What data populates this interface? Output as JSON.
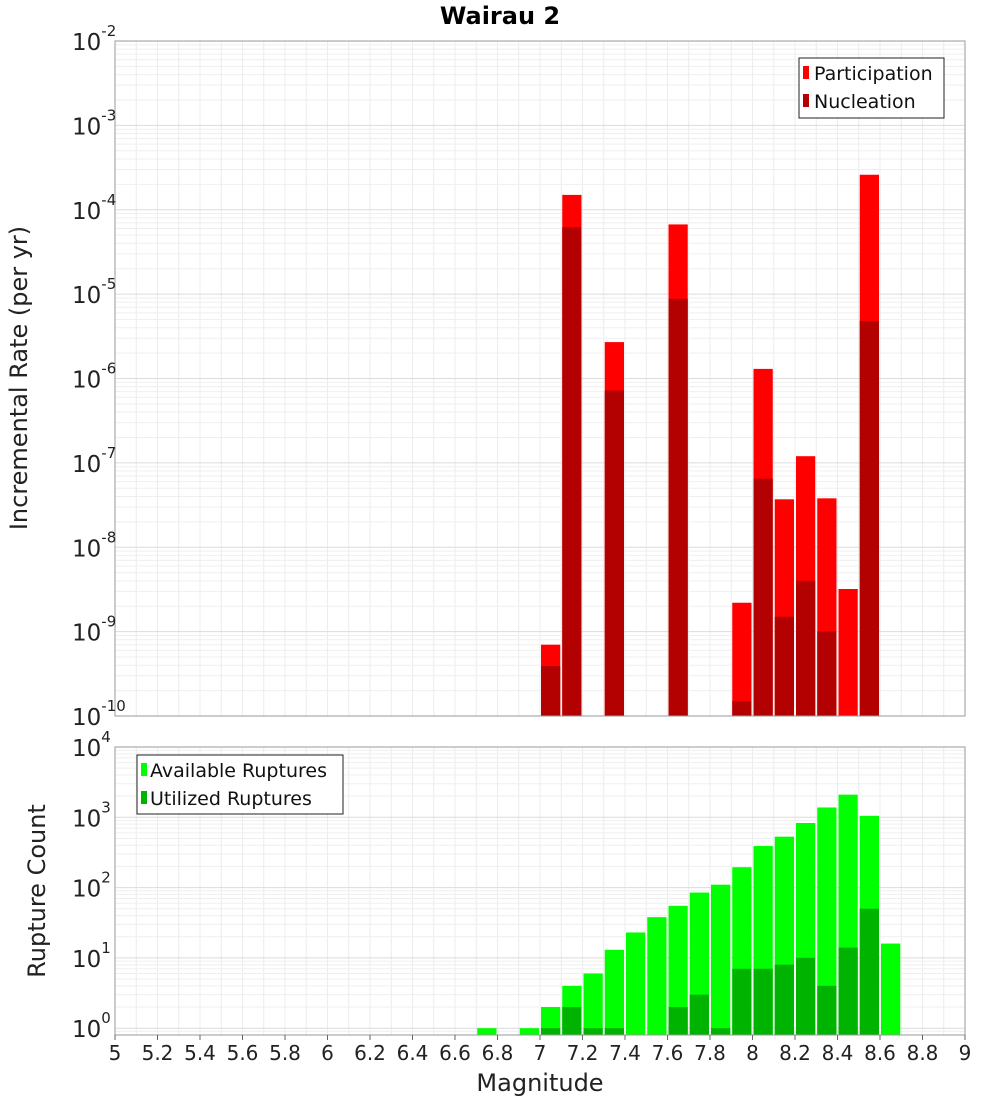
{
  "title": "Wairau 2",
  "chart_data": [
    {
      "type": "bar",
      "scale": "log",
      "ylabel": "Incremental Rate (per yr)",
      "xlabel": "",
      "xlim": [
        5,
        9
      ],
      "ylim": [
        1e-10,
        0.01
      ],
      "ytick_exponents": [
        -10,
        -9,
        -8,
        -7,
        -6,
        -5,
        -4,
        -3,
        -2
      ],
      "grid": true,
      "legend_position": "top-right",
      "series": [
        {
          "name": "Participation",
          "color": "#ff0000",
          "x": [
            7.05,
            7.15,
            7.35,
            7.65,
            7.95,
            8.05,
            8.15,
            8.25,
            8.35,
            8.45,
            8.55
          ],
          "values": [
            7e-10,
            0.00015,
            2.7e-06,
            6.7e-05,
            2.2e-09,
            1.3e-06,
            3.7e-08,
            1.2e-07,
            3.8e-08,
            3.2e-09,
            0.00026
          ]
        },
        {
          "name": "Nucleation",
          "color": "#b30000",
          "x": [
            7.05,
            7.15,
            7.35,
            7.65,
            7.95,
            8.05,
            8.15,
            8.25,
            8.35,
            8.55
          ],
          "values": [
            3.9e-10,
            6.2e-05,
            7.2e-07,
            8.8e-06,
            1.5e-10,
            6.5e-08,
            1.5e-09,
            4e-09,
            1e-09,
            4.8e-06
          ]
        }
      ]
    },
    {
      "type": "bar",
      "scale": "log",
      "ylabel": "Rupture Count",
      "xlabel": "Magnitude",
      "xlim": [
        5,
        9
      ],
      "ylim": [
        0.8,
        10000
      ],
      "ytick_exponents": [
        0,
        1,
        2,
        3,
        4
      ],
      "xticks": [
        "5",
        "5.2",
        "5.4",
        "5.6",
        "5.8",
        "6",
        "6.2",
        "6.4",
        "6.6",
        "6.8",
        "7",
        "7.2",
        "7.4",
        "7.6",
        "7.8",
        "8",
        "8.2",
        "8.4",
        "8.6",
        "8.8",
        "9"
      ],
      "grid": true,
      "legend_position": "top-left",
      "series": [
        {
          "name": "Available Ruptures",
          "color": "#00ff00",
          "x": [
            6.75,
            6.95,
            7.05,
            7.15,
            7.25,
            7.35,
            7.45,
            7.55,
            7.65,
            7.75,
            7.85,
            7.95,
            8.05,
            8.15,
            8.25,
            8.35,
            8.45,
            8.55,
            8.65
          ],
          "values": [
            1,
            1,
            2,
            4,
            6,
            13,
            23,
            38,
            55,
            85,
            110,
            195,
            390,
            530,
            830,
            1380,
            2100,
            1050,
            16
          ]
        },
        {
          "name": "Utilized Ruptures",
          "color": "#00b300",
          "x": [
            7.05,
            7.15,
            7.25,
            7.35,
            7.65,
            7.75,
            7.85,
            7.95,
            8.05,
            8.15,
            8.25,
            8.35,
            8.45,
            8.55
          ],
          "values": [
            1,
            2,
            1,
            1,
            2,
            3,
            1,
            7,
            7,
            8,
            10,
            4,
            14,
            50
          ]
        }
      ]
    }
  ]
}
